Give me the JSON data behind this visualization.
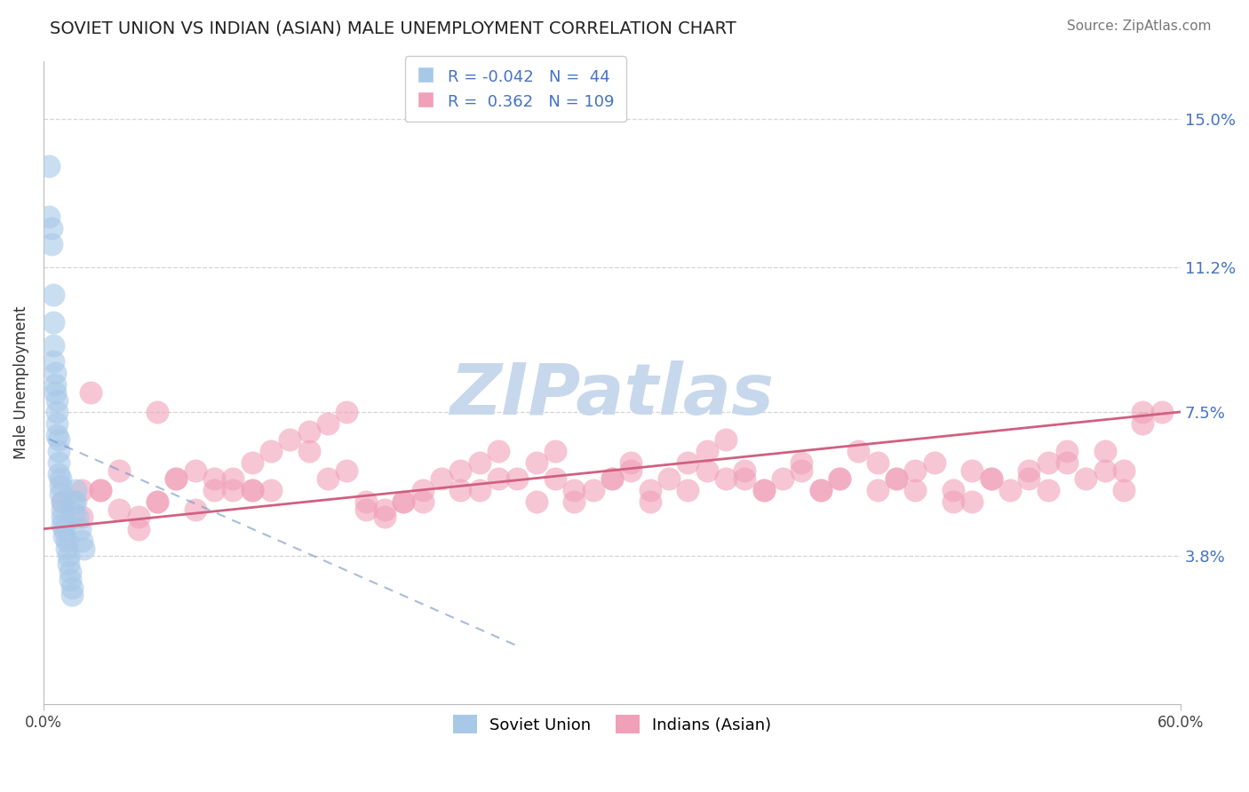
{
  "title": "SOVIET UNION VS INDIAN (ASIAN) MALE UNEMPLOYMENT CORRELATION CHART",
  "source": "Source: ZipAtlas.com",
  "ylabel": "Male Unemployment",
  "ytick_labels": [
    "3.8%",
    "7.5%",
    "11.2%",
    "15.0%"
  ],
  "ytick_values": [
    3.8,
    7.5,
    11.2,
    15.0
  ],
  "xlim": [
    0.0,
    60.0
  ],
  "ylim": [
    0.0,
    16.5
  ],
  "legend1_label": "Soviet Union",
  "legend2_label": "Indians (Asian)",
  "r1": -0.042,
  "n1": 44,
  "r2": 0.362,
  "n2": 109,
  "blue_color": "#A8C8E8",
  "pink_color": "#F0A0B8",
  "blue_line_color": "#7090C0",
  "pink_line_color": "#D06080",
  "background_color": "#FFFFFF",
  "watermark_color": "#C8D8EC",
  "soviet_x": [
    0.3,
    0.3,
    0.4,
    0.4,
    0.5,
    0.5,
    0.5,
    0.5,
    0.6,
    0.6,
    0.6,
    0.7,
    0.7,
    0.7,
    0.7,
    0.8,
    0.8,
    0.8,
    0.8,
    0.9,
    0.9,
    0.9,
    1.0,
    1.0,
    1.0,
    1.0,
    1.1,
    1.1,
    1.2,
    1.2,
    1.3,
    1.3,
    1.4,
    1.4,
    1.5,
    1.5,
    1.6,
    1.6,
    1.7,
    1.7,
    1.8,
    1.9,
    2.0,
    2.1
  ],
  "soviet_y": [
    13.8,
    12.5,
    11.8,
    12.2,
    10.5,
    9.8,
    9.2,
    8.8,
    8.5,
    8.2,
    8.0,
    7.8,
    7.5,
    7.2,
    6.9,
    6.8,
    6.5,
    6.2,
    5.9,
    5.8,
    5.6,
    5.4,
    5.2,
    5.0,
    4.8,
    4.6,
    4.5,
    4.3,
    4.2,
    4.0,
    3.8,
    3.6,
    3.4,
    3.2,
    3.0,
    2.8,
    5.2,
    4.9,
    5.5,
    5.2,
    4.8,
    4.5,
    4.2,
    4.0
  ],
  "indian_x": [
    1.0,
    2.0,
    3.0,
    4.0,
    5.0,
    6.0,
    7.0,
    8.0,
    9.0,
    10.0,
    11.0,
    12.0,
    13.0,
    14.0,
    15.0,
    16.0,
    17.0,
    18.0,
    19.0,
    20.0,
    21.0,
    22.0,
    23.0,
    24.0,
    25.0,
    26.0,
    27.0,
    28.0,
    29.0,
    30.0,
    31.0,
    32.0,
    33.0,
    34.0,
    35.0,
    36.0,
    37.0,
    38.0,
    39.0,
    40.0,
    41.0,
    42.0,
    43.0,
    44.0,
    45.0,
    46.0,
    47.0,
    48.0,
    49.0,
    50.0,
    51.0,
    52.0,
    53.0,
    54.0,
    55.0,
    56.0,
    57.0,
    58.0,
    5.0,
    8.0,
    12.0,
    16.0,
    20.0,
    24.0,
    28.0,
    32.0,
    36.0,
    40.0,
    44.0,
    48.0,
    52.0,
    56.0,
    2.0,
    4.0,
    6.0,
    9.0,
    11.0,
    14.0,
    18.0,
    22.0,
    26.0,
    30.0,
    35.0,
    38.0,
    42.0,
    46.0,
    50.0,
    54.0,
    58.0,
    3.0,
    7.0,
    10.0,
    15.0,
    19.0,
    23.0,
    27.0,
    31.0,
    34.0,
    37.0,
    41.0,
    45.0,
    49.0,
    53.0,
    57.0,
    59.0,
    2.5,
    6.0,
    11.0,
    17.0
  ],
  "indian_y": [
    5.2,
    4.8,
    5.5,
    5.0,
    4.8,
    5.2,
    5.8,
    6.0,
    5.5,
    5.8,
    6.2,
    6.5,
    6.8,
    7.0,
    7.2,
    7.5,
    5.0,
    4.8,
    5.2,
    5.5,
    5.8,
    6.0,
    6.2,
    6.5,
    5.8,
    6.2,
    6.5,
    5.2,
    5.5,
    5.8,
    6.2,
    5.5,
    5.8,
    6.2,
    6.5,
    6.8,
    6.0,
    5.5,
    5.8,
    6.2,
    5.5,
    5.8,
    6.5,
    6.2,
    5.8,
    6.0,
    6.2,
    5.5,
    5.2,
    5.8,
    5.5,
    5.8,
    6.2,
    6.5,
    5.8,
    6.0,
    5.5,
    7.5,
    4.5,
    5.0,
    5.5,
    6.0,
    5.2,
    5.8,
    5.5,
    5.2,
    5.8,
    6.0,
    5.5,
    5.2,
    6.0,
    6.5,
    5.5,
    6.0,
    5.2,
    5.8,
    5.5,
    6.5,
    5.0,
    5.5,
    5.2,
    5.8,
    6.0,
    5.5,
    5.8,
    5.5,
    5.8,
    6.2,
    7.2,
    5.5,
    5.8,
    5.5,
    5.8,
    5.2,
    5.5,
    5.8,
    6.0,
    5.5,
    5.8,
    5.5,
    5.8,
    6.0,
    5.5,
    6.0,
    7.5,
    8.0,
    7.5,
    5.5,
    5.2
  ],
  "pink_line_x0": 0.0,
  "pink_line_x1": 60.0,
  "pink_line_y0": 4.5,
  "pink_line_y1": 7.5,
  "blue_line_x0": 0.3,
  "blue_line_x1": 25.0,
  "blue_line_y0": 6.8,
  "blue_line_y1": 1.5
}
